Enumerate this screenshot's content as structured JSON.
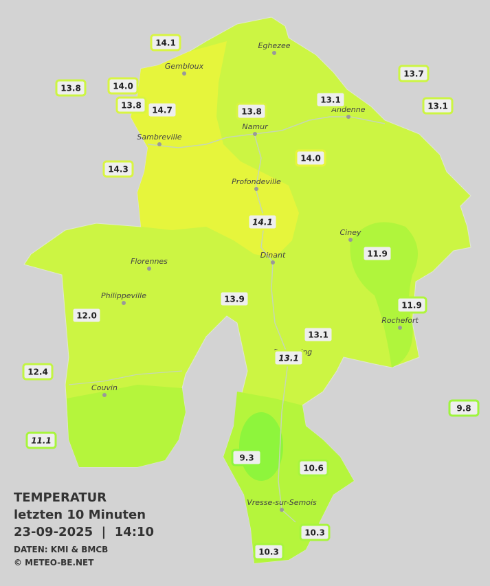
{
  "title": {
    "heading": "TEMPERATUR",
    "period": "letzten 10 Minuten",
    "timestamp": "23-09-2025  |  14:10",
    "source": "DATEN: KMI & BMCB",
    "copyright": "© METEO-BE.NET"
  },
  "cities": [
    "Eghezee",
    "Gembloux",
    "Andenne",
    "Namur",
    "Sambreville",
    "Profondeville",
    "Ciney",
    "Dinant",
    "Florennes",
    "Philippeville",
    "Rochefort",
    "Beauraing",
    "Couvin",
    "Vresse-sur-Semois"
  ],
  "stations": [
    "14.1",
    "13.8",
    "14.0",
    "13.8",
    "14.7",
    "13.7",
    "13.1",
    "13.1",
    "13.8",
    "14.3",
    "14.0",
    "14.1",
    "11.9",
    "12.0",
    "13.9",
    "11.9",
    "13.1",
    "13.1",
    "12.4",
    "9.8",
    "11.1",
    "9.3",
    "10.6",
    "10.3",
    "10.3"
  ]
}
